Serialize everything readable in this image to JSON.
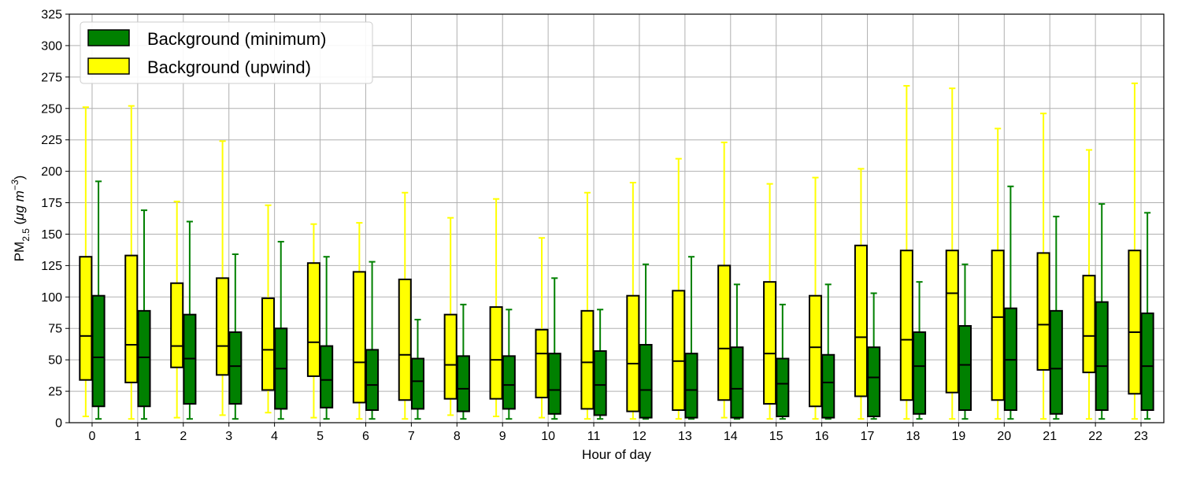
{
  "chart_data": {
    "type": "box",
    "xlabel": "Hour of day",
    "ylabel": "PM2.5 (μg m−3)",
    "ylabel_parts": {
      "main": "PM",
      "sub": "2.5",
      "open": " (",
      "unit_mu": "μg",
      "unit_m": " m",
      "sup": "−3",
      "close": ")"
    },
    "ylim": [
      0,
      325
    ],
    "yticks": [
      0,
      25,
      50,
      75,
      100,
      125,
      150,
      175,
      200,
      225,
      250,
      275,
      300,
      325
    ],
    "categories": [
      "0",
      "1",
      "2",
      "3",
      "4",
      "5",
      "6",
      "7",
      "8",
      "9",
      "10",
      "11",
      "12",
      "13",
      "14",
      "15",
      "16",
      "17",
      "18",
      "19",
      "20",
      "21",
      "22",
      "23"
    ],
    "grid": true,
    "legend_position": "top-left",
    "series": [
      {
        "name": "Background (minimum)",
        "color": "#008000",
        "whisker_color": "#008000",
        "q1": [
          13,
          13,
          15,
          15,
          11,
          12,
          10,
          11,
          9,
          11,
          7,
          6,
          4,
          4,
          4,
          5,
          4,
          5,
          7,
          10,
          10,
          7,
          10,
          10
        ],
        "median": [
          52,
          52,
          51,
          45,
          43,
          34,
          30,
          33,
          27,
          30,
          26,
          30,
          26,
          26,
          27,
          31,
          32,
          36,
          45,
          46,
          50,
          43,
          45,
          45
        ],
        "q3": [
          101,
          89,
          86,
          72,
          75,
          61,
          58,
          51,
          53,
          53,
          55,
          57,
          62,
          55,
          60,
          51,
          54,
          60,
          72,
          77,
          91,
          89,
          96,
          87
        ],
        "whisker_low": [
          3,
          3,
          3,
          3,
          3,
          3,
          3,
          3,
          3,
          3,
          3,
          3,
          3,
          3,
          3,
          3,
          3,
          3,
          3,
          3,
          3,
          3,
          3,
          3
        ],
        "whisker_high": [
          192,
          169,
          160,
          134,
          144,
          132,
          128,
          82,
          94,
          90,
          115,
          90,
          126,
          132,
          110,
          94,
          110,
          103,
          112,
          126,
          188,
          164,
          174,
          167
        ]
      },
      {
        "name": "Background (upwind)",
        "color": "#ffff00",
        "whisker_color": "#ffff00",
        "q1": [
          34,
          32,
          44,
          38,
          26,
          37,
          16,
          18,
          19,
          19,
          20,
          11,
          9,
          10,
          18,
          15,
          13,
          21,
          18,
          24,
          18,
          42,
          40,
          23
        ],
        "median": [
          69,
          62,
          61,
          61,
          58,
          64,
          48,
          54,
          46,
          50,
          55,
          48,
          47,
          49,
          59,
          55,
          60,
          68,
          66,
          103,
          84,
          78,
          69,
          72
        ],
        "q3": [
          132,
          133,
          111,
          115,
          99,
          127,
          120,
          114,
          86,
          92,
          74,
          89,
          101,
          105,
          125,
          112,
          101,
          141,
          137,
          137,
          137,
          135,
          117,
          137
        ],
        "whisker_low": [
          5,
          3,
          4,
          6,
          8,
          4,
          3,
          3,
          6,
          5,
          4,
          3,
          3,
          3,
          4,
          3,
          3,
          3,
          3,
          3,
          3,
          3,
          3,
          3
        ],
        "whisker_high": [
          251,
          252,
          176,
          224,
          173,
          158,
          159,
          183,
          163,
          178,
          147,
          183,
          191,
          210,
          223,
          190,
          195,
          202,
          268,
          266,
          234,
          246,
          217,
          270
        ]
      }
    ]
  }
}
